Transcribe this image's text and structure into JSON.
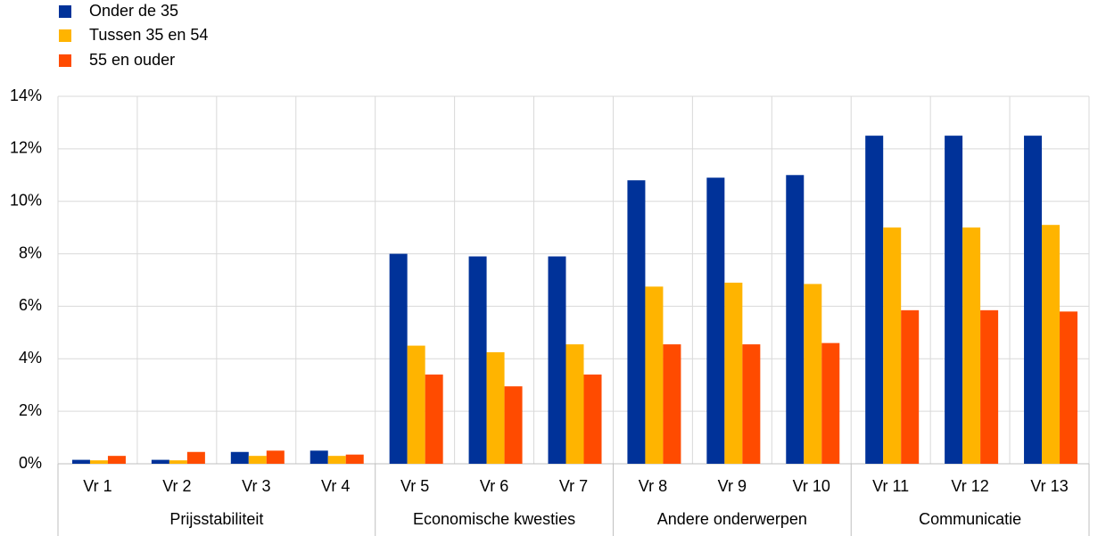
{
  "chart_data": {
    "type": "bar",
    "groups": [
      {
        "name": "Prijsstabiliteit",
        "categories": [
          "Vr 1",
          "Vr 2",
          "Vr 3",
          "Vr 4"
        ]
      },
      {
        "name": "Economische kwesties",
        "categories": [
          "Vr 5",
          "Vr 6",
          "Vr 7"
        ]
      },
      {
        "name": "Andere onderwerpen",
        "categories": [
          "Vr 8",
          "Vr 9",
          "Vr 10"
        ]
      },
      {
        "name": "Communicatie",
        "categories": [
          "Vr 11",
          "Vr 12",
          "Vr 13"
        ]
      }
    ],
    "series": [
      {
        "name": "Onder de 35",
        "color": "#003299",
        "values": [
          0.15,
          0.15,
          0.45,
          0.5,
          8.0,
          7.9,
          7.9,
          10.8,
          10.9,
          11.0,
          12.5,
          12.5,
          12.5
        ]
      },
      {
        "name": "Tussen 35 en 54",
        "color": "#ffb400",
        "values": [
          0.13,
          0.13,
          0.3,
          0.3,
          4.5,
          4.25,
          4.55,
          6.75,
          6.9,
          6.85,
          9.0,
          9.0,
          9.1
        ]
      },
      {
        "name": "55 en ouder",
        "color": "#ff4b00",
        "values": [
          0.3,
          0.45,
          0.5,
          0.35,
          3.4,
          2.95,
          3.4,
          4.55,
          4.55,
          4.6,
          5.85,
          5.85,
          5.8
        ]
      }
    ],
    "ylim": [
      0,
      14
    ],
    "yticks": [
      {
        "value": 0,
        "label": "0%"
      },
      {
        "value": 2,
        "label": "2%"
      },
      {
        "value": 4,
        "label": "4%"
      },
      {
        "value": 6,
        "label": "6%"
      },
      {
        "value": 8,
        "label": "8%"
      },
      {
        "value": 10,
        "label": "10%"
      },
      {
        "value": 12,
        "label": "12%"
      },
      {
        "value": 14,
        "label": "14%"
      }
    ],
    "grid": true,
    "legend": "top-left"
  }
}
